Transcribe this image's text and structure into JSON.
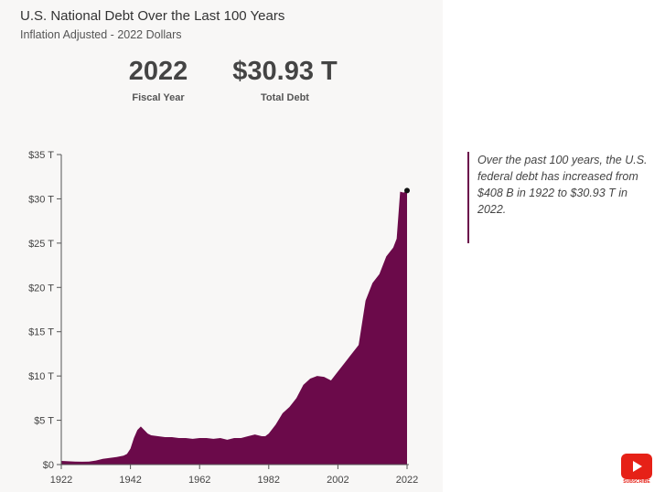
{
  "header": {
    "title": "U.S. National Debt Over the Last 100 Years",
    "subtitle": "Inflation Adjusted - 2022 Dollars"
  },
  "stats": {
    "fiscal_year_value": "2022",
    "fiscal_year_label": "Fiscal Year",
    "total_debt_value": "$30.93 T",
    "total_debt_label": "Total Debt"
  },
  "annotation": {
    "text": "Over the past 100 years, the U.S. federal debt has increased from $408 B in 1922 to $30.93 T in 2022."
  },
  "youtube": {
    "label": "SUBSCRIBE",
    "icon": "youtube-play-icon"
  },
  "colors": {
    "area_fill": "#6b0a4a",
    "panel_bg": "#f8f7f6",
    "axis": "#555555",
    "accent_red": "#e62117"
  },
  "chart_data": {
    "type": "area",
    "title": "U.S. National Debt Over the Last 100 Years",
    "subtitle": "Inflation Adjusted - 2022 Dollars",
    "xlabel": "",
    "ylabel": "",
    "xlim": [
      1922,
      2022
    ],
    "ylim": [
      0,
      35
    ],
    "x_ticks": [
      1922,
      1942,
      1962,
      1982,
      2002,
      2022
    ],
    "x_tick_labels": [
      "1922",
      "1942",
      "1962",
      "1982",
      "2002",
      "2022"
    ],
    "y_ticks": [
      0,
      5,
      10,
      15,
      20,
      25,
      30,
      35
    ],
    "y_tick_labels": [
      "$0",
      "$5 T",
      "$10 T",
      "$15 T",
      "$20 T",
      "$25 T",
      "$30 T",
      "$35 T"
    ],
    "grid": false,
    "series": [
      {
        "x": [
          1922,
          1924,
          1926,
          1928,
          1930,
          1932,
          1934,
          1936,
          1938,
          1940,
          1941,
          1942,
          1943,
          1944,
          1945,
          1946,
          1947,
          1948,
          1950,
          1952,
          1954,
          1956,
          1958,
          1960,
          1962,
          1964,
          1966,
          1968,
          1970,
          1972,
          1974,
          1976,
          1978,
          1980,
          1981,
          1982,
          1984,
          1986,
          1988,
          1990,
          1992,
          1994,
          1996,
          1998,
          2000,
          2002,
          2004,
          2006,
          2008,
          2009,
          2010,
          2012,
          2014,
          2016,
          2018,
          2019,
          2020,
          2021,
          2022
        ],
        "values": [
          0.41,
          0.38,
          0.33,
          0.32,
          0.33,
          0.45,
          0.65,
          0.75,
          0.85,
          1.0,
          1.2,
          1.8,
          3.0,
          3.9,
          4.3,
          3.9,
          3.5,
          3.3,
          3.2,
          3.1,
          3.1,
          3.0,
          3.0,
          2.9,
          3.0,
          3.0,
          2.9,
          3.0,
          2.8,
          3.0,
          3.0,
          3.2,
          3.4,
          3.2,
          3.2,
          3.5,
          4.5,
          5.8,
          6.5,
          7.5,
          9.0,
          9.7,
          10.0,
          9.9,
          9.5,
          10.5,
          11.5,
          12.5,
          13.5,
          16.0,
          18.5,
          20.5,
          21.5,
          23.5,
          24.5,
          25.5,
          30.8,
          30.7,
          30.93
        ]
      }
    ],
    "highlight_point": {
      "x": 2022,
      "y": 30.93
    }
  }
}
